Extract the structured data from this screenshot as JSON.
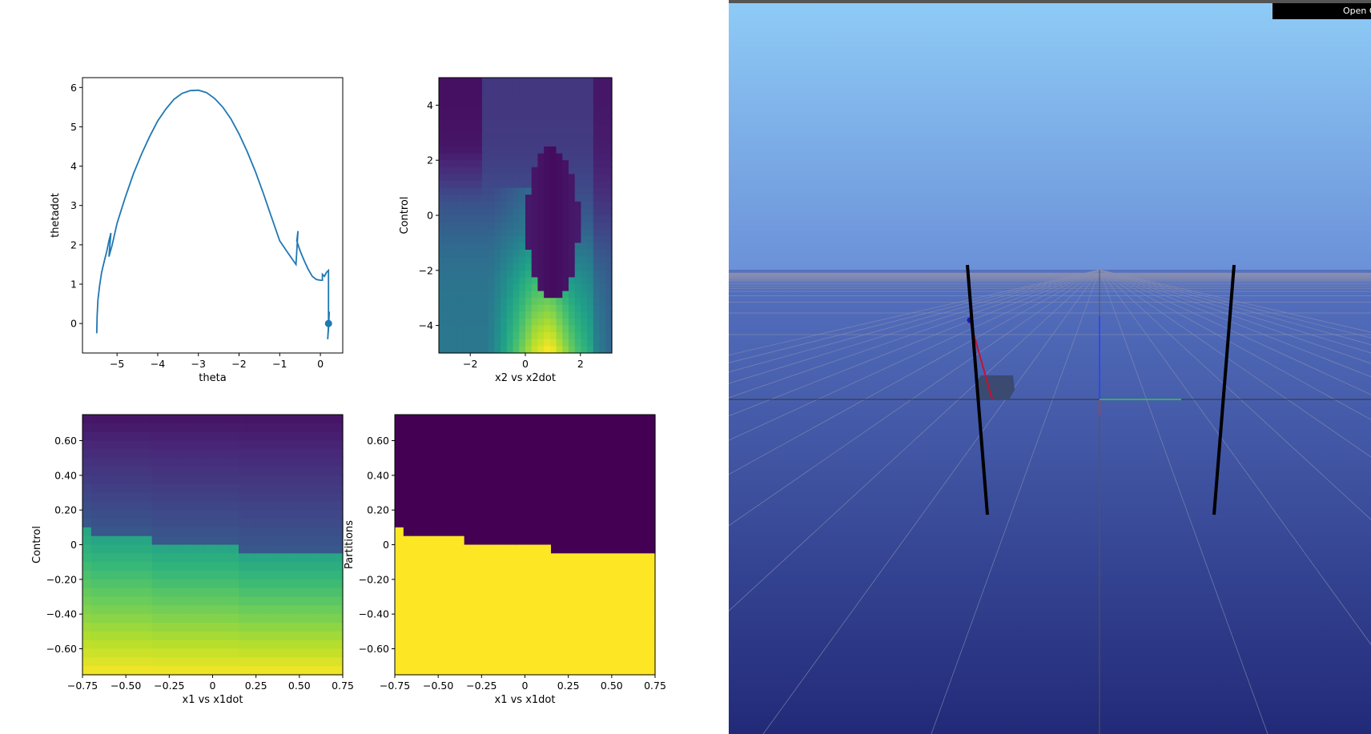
{
  "chart_data": [
    {
      "type": "line",
      "xlabel": "theta",
      "ylabel": "thetadot",
      "xlim": [
        -5.85,
        0.55
      ],
      "ylim": [
        -0.75,
        6.25
      ],
      "xticks": [
        -5,
        -4,
        -3,
        -2,
        -1,
        0
      ],
      "yticks": [
        0,
        1,
        2,
        3,
        4,
        5,
        6
      ],
      "color": "#1f77b4",
      "series": [
        {
          "x": [
            -5.5,
            -5.49,
            -5.47,
            -5.43,
            -5.38,
            -5.31,
            -5.25,
            -5.2,
            -5.15,
            -5.2,
            -5.12,
            -5.0,
            -4.8,
            -4.6,
            -4.4,
            -4.2,
            -4.0,
            -3.8,
            -3.6,
            -3.4,
            -3.2,
            -3.0,
            -2.8,
            -2.6,
            -2.4,
            -2.2,
            -2.0,
            -1.8,
            -1.6,
            -1.4,
            -1.2,
            -1.0,
            -0.8,
            -0.6,
            -0.55,
            -0.58,
            -0.5,
            -0.4,
            -0.3,
            -0.2,
            -0.1,
            0.0,
            0.05,
            0.05,
            0.1,
            0.15,
            0.2,
            0.2,
            0.22,
            0.18,
            0.21
          ],
          "y": [
            -0.25,
            0.2,
            0.6,
            0.95,
            1.3,
            1.6,
            1.85,
            2.1,
            2.3,
            1.7,
            2.0,
            2.55,
            3.2,
            3.8,
            4.3,
            4.75,
            5.15,
            5.45,
            5.7,
            5.85,
            5.92,
            5.93,
            5.87,
            5.72,
            5.5,
            5.2,
            4.82,
            4.37,
            3.87,
            3.3,
            2.7,
            2.1,
            1.8,
            1.5,
            2.35,
            2.1,
            1.85,
            1.6,
            1.38,
            1.2,
            1.12,
            1.1,
            1.1,
            1.25,
            1.2,
            1.3,
            1.35,
            -0.1,
            0.3,
            -0.4,
            0.0
          ]
        }
      ],
      "marker": {
        "x": 0.2,
        "y": 0.0
      }
    },
    {
      "type": "heatmap",
      "xlabel": "x2 vs x2dot",
      "ylabel": "Control",
      "xlim": [
        -3.14,
        3.14
      ],
      "ylim": [
        -5,
        5
      ],
      "xticks": [
        -2,
        0,
        2
      ],
      "yticks": [
        -4,
        -2,
        0,
        2,
        4
      ],
      "colormap": "viridis"
    },
    {
      "type": "heatmap",
      "xlabel": "x1 vs x1dot",
      "ylabel": "Control",
      "xlim": [
        -0.75,
        0.75
      ],
      "ylim": [
        -0.75,
        0.75
      ],
      "xticks": [
        -0.75,
        -0.5,
        -0.25,
        0.0,
        0.25,
        0.5,
        0.75
      ],
      "yticks": [
        -0.6,
        -0.4,
        -0.2,
        0.0,
        0.2,
        0.4,
        0.6
      ],
      "colormap": "viridis"
    },
    {
      "type": "heatmap",
      "xlabel": "x1 vs x1dot",
      "ylabel": "Partitions",
      "xlim": [
        -0.75,
        0.75
      ],
      "ylim": [
        -0.75,
        0.75
      ],
      "xticks": [
        -0.75,
        -0.5,
        -0.25,
        0.0,
        0.25,
        0.5,
        0.75
      ],
      "yticks": [
        -0.6,
        -0.4,
        -0.2,
        0.0,
        0.2,
        0.4,
        0.6
      ],
      "colormap": "viridis"
    }
  ],
  "viewer": {
    "open_button_label": "Open C",
    "sky_top": "#8ecbf6",
    "sky_bottom": "#6b91d8",
    "floor_top": "#5572c0",
    "floor_bottom": "#222a78",
    "pole_color": "#000000",
    "pendulum_color": "#c8102e",
    "cart_color": "#3a4a70"
  }
}
